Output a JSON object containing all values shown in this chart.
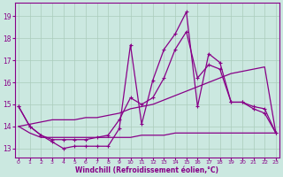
{
  "xlabel": "Windchill (Refroidissement éolien,°C)",
  "bg_color": "#cbe8e0",
  "line_color": "#880088",
  "grid_color": "#aaccbb",
  "xlim": [
    -0.3,
    23.3
  ],
  "ylim": [
    12.6,
    19.6
  ],
  "xticks": [
    0,
    1,
    2,
    3,
    4,
    5,
    6,
    7,
    8,
    9,
    10,
    11,
    12,
    13,
    14,
    15,
    16,
    17,
    18,
    19,
    20,
    21,
    22,
    23
  ],
  "yticks": [
    13,
    14,
    15,
    16,
    17,
    18,
    19
  ],
  "series1_x": [
    0,
    1,
    2,
    3,
    4,
    5,
    6,
    7,
    8,
    9,
    10,
    11,
    12,
    13,
    14,
    15,
    16,
    17,
    18,
    19,
    20,
    21,
    22,
    23
  ],
  "series1_y": [
    14.9,
    14.0,
    13.6,
    13.3,
    13.0,
    13.1,
    13.1,
    13.1,
    13.1,
    13.9,
    17.7,
    14.1,
    16.1,
    17.5,
    18.2,
    19.2,
    14.9,
    17.3,
    16.9,
    15.1,
    15.1,
    14.8,
    14.6,
    13.7
  ],
  "series2_x": [
    0,
    1,
    2,
    3,
    4,
    5,
    6,
    7,
    8,
    9,
    10,
    11,
    12,
    13,
    14,
    15,
    16,
    17,
    18,
    19,
    20,
    21,
    22,
    23
  ],
  "series2_y": [
    14.9,
    14.0,
    13.6,
    13.4,
    13.4,
    13.4,
    13.4,
    13.5,
    13.6,
    14.3,
    15.3,
    15.0,
    15.3,
    16.2,
    17.5,
    18.3,
    16.2,
    16.8,
    16.6,
    15.1,
    15.1,
    14.9,
    14.8,
    13.7
  ],
  "series3_x": [
    0,
    1,
    2,
    3,
    4,
    5,
    6,
    7,
    8,
    9,
    10,
    11,
    12,
    13,
    14,
    15,
    16,
    17,
    18,
    19,
    20,
    21,
    22,
    23
  ],
  "series3_y": [
    14.0,
    14.1,
    14.2,
    14.3,
    14.3,
    14.3,
    14.4,
    14.4,
    14.5,
    14.6,
    14.8,
    14.9,
    15.0,
    15.2,
    15.4,
    15.6,
    15.8,
    16.0,
    16.2,
    16.4,
    16.5,
    16.6,
    16.7,
    13.7
  ],
  "series4_x": [
    0,
    1,
    2,
    3,
    4,
    5,
    6,
    7,
    8,
    9,
    10,
    11,
    12,
    13,
    14,
    15,
    16,
    17,
    18,
    19,
    20,
    21,
    22,
    23
  ],
  "series4_y": [
    14.0,
    13.7,
    13.5,
    13.5,
    13.5,
    13.5,
    13.5,
    13.5,
    13.5,
    13.5,
    13.5,
    13.6,
    13.6,
    13.6,
    13.7,
    13.7,
    13.7,
    13.7,
    13.7,
    13.7,
    13.7,
    13.7,
    13.7,
    13.7
  ]
}
